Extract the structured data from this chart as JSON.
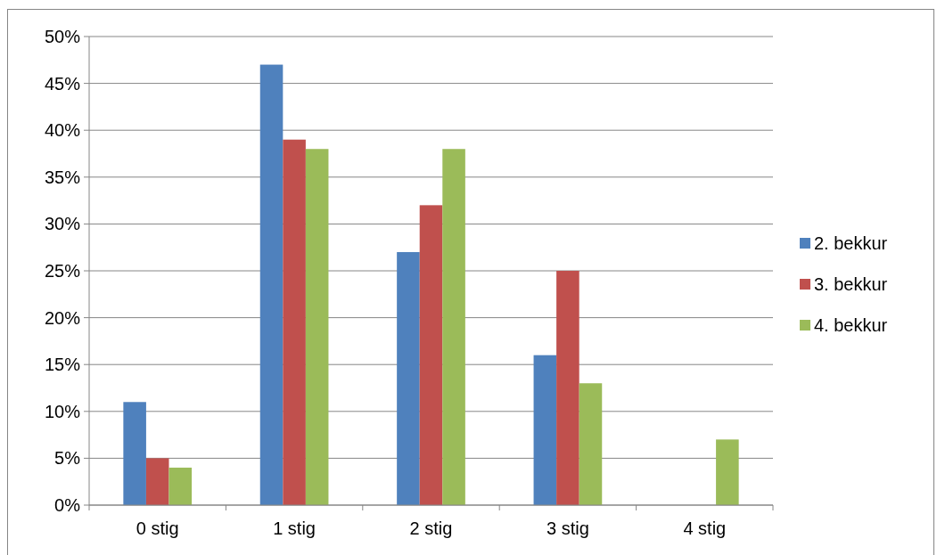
{
  "chart_data": {
    "type": "bar",
    "categories": [
      "0 stig",
      "1 stig",
      "2 stig",
      "3 stig",
      "4 stig"
    ],
    "series": [
      {
        "name": "2. bekkur",
        "color": "#4f81bd",
        "values": [
          11,
          47,
          27,
          16,
          0
        ]
      },
      {
        "name": "3. bekkur",
        "color": "#c0504d",
        "values": [
          5,
          39,
          32,
          25,
          0
        ]
      },
      {
        "name": "4. bekkur",
        "color": "#9bbb59",
        "values": [
          4,
          38,
          38,
          13,
          7
        ]
      }
    ],
    "ylim": [
      0,
      50
    ],
    "yticks": [
      {
        "value": 0,
        "label": "0%"
      },
      {
        "value": 5,
        "label": "5%"
      },
      {
        "value": 10,
        "label": "10%"
      },
      {
        "value": 15,
        "label": "15%"
      },
      {
        "value": 20,
        "label": "20%"
      },
      {
        "value": 25,
        "label": "25%"
      },
      {
        "value": 30,
        "label": "30%"
      },
      {
        "value": 35,
        "label": "35%"
      },
      {
        "value": 40,
        "label": "40%"
      },
      {
        "value": 45,
        "label": "45%"
      },
      {
        "value": 50,
        "label": "50%"
      }
    ],
    "grid": "y",
    "legend": "right"
  }
}
